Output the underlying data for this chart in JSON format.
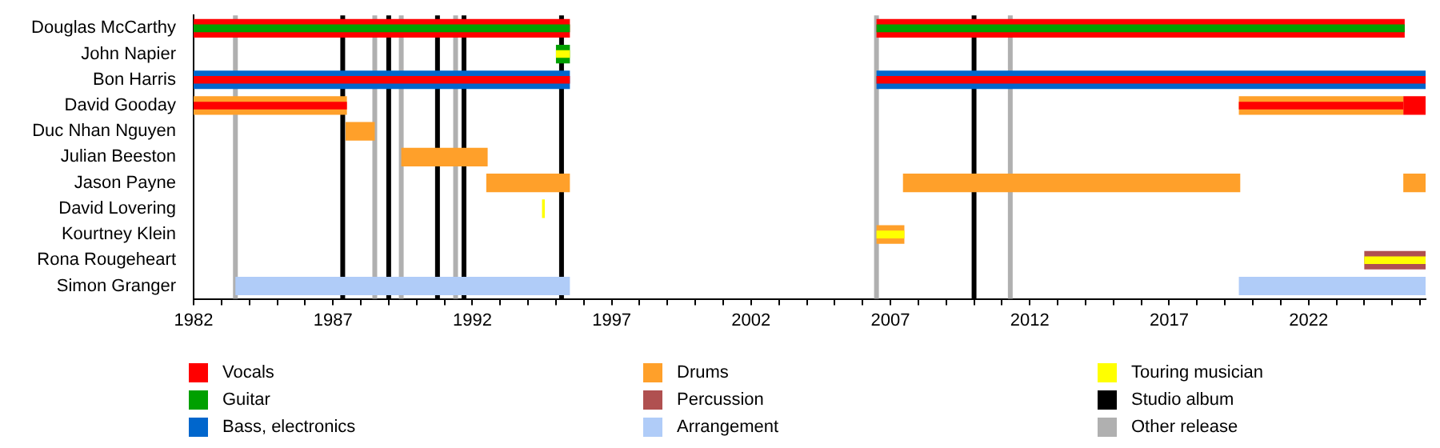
{
  "chart_data": {
    "type": "bar",
    "orientation": "horizontal",
    "legend": "bottom",
    "categories": [
      "Douglas McCarthy",
      "John Napier",
      "Bon Harris",
      "David Gooday",
      "Duc Nhan Nguyen",
      "Julian Beeston",
      "Jason Payne",
      "David Lovering",
      "Kourtney Klein",
      "Rona Rougeheart",
      "Simon Granger"
    ],
    "xlim": [
      1982,
      2026.2
    ],
    "xticks": [
      1982,
      {
        "value": 1983,
        "label": null
      },
      {
        "value": 1984,
        "label": null
      },
      {
        "value": 1985,
        "label": null
      },
      {
        "value": 1986,
        "label": null
      },
      1987,
      {
        "value": 1988,
        "label": null
      },
      {
        "value": 1989,
        "label": null
      },
      {
        "value": 1990,
        "label": null
      },
      {
        "value": 1991,
        "label": null
      },
      1992,
      {
        "value": 1993,
        "label": null
      },
      {
        "value": 1994,
        "label": null
      },
      {
        "value": 1995,
        "label": null
      },
      {
        "value": 1996,
        "label": null
      },
      1997,
      {
        "value": 1998,
        "label": null
      },
      {
        "value": 1999,
        "label": null
      },
      {
        "value": 2000,
        "label": null
      },
      {
        "value": 2001,
        "label": null
      },
      2002,
      {
        "value": 2003,
        "label": null
      },
      {
        "value": 2004,
        "label": null
      },
      {
        "value": 2005,
        "label": null
      },
      {
        "value": 2006,
        "label": null
      },
      2007,
      {
        "value": 2008,
        "label": null
      },
      {
        "value": 2009,
        "label": null
      },
      {
        "value": 2010,
        "label": null
      },
      {
        "value": 2011,
        "label": null
      },
      2012,
      {
        "value": 2013,
        "label": null
      },
      {
        "value": 2014,
        "label": null
      },
      {
        "value": 2015,
        "label": null
      },
      {
        "value": 2016,
        "label": null
      },
      2017,
      {
        "value": 2018,
        "label": null
      },
      {
        "value": 2019,
        "label": null
      },
      {
        "value": 2020,
        "label": null
      },
      {
        "value": 2021,
        "label": null
      },
      2022,
      {
        "value": 2023,
        "label": null
      },
      {
        "value": 2024,
        "label": null
      },
      {
        "value": 2025,
        "label": null
      },
      {
        "value": 2026,
        "label": null
      }
    ],
    "series": [
      {
        "name": "Vocals",
        "color": "#ff0000",
        "base": [
          1982,
          null,
          null,
          2025.4,
          null,
          null,
          null,
          null,
          null,
          null,
          null
        ],
        "values": [
          13.5,
          null,
          null,
          0.8,
          null,
          null,
          null,
          null,
          null,
          null,
          null
        ]
      },
      {
        "color": "#ff0000",
        "base": [
          2006.5,
          null,
          null,
          null,
          null,
          null,
          null,
          null,
          null,
          null,
          null
        ],
        "values": [
          18.95,
          null,
          null,
          null,
          null,
          null,
          null,
          null,
          null,
          null,
          null
        ]
      },
      {
        "name": "Guitar",
        "color": "#00a000",
        "base": [
          null,
          1995,
          null,
          null,
          null,
          null,
          null,
          null,
          null,
          null,
          null
        ],
        "values": [
          null,
          0.5,
          null,
          null,
          null,
          null,
          null,
          null,
          null,
          null,
          null
        ]
      },
      {
        "name": "Bass, electronics",
        "color": "#0066cc",
        "base": [
          null,
          null,
          1982,
          null,
          null,
          null,
          null,
          null,
          null,
          null,
          null
        ],
        "values": [
          null,
          null,
          13.5,
          null,
          null,
          null,
          null,
          null,
          null,
          null,
          null
        ]
      },
      {
        "color": "#0066cc",
        "base": [
          null,
          null,
          2006.5,
          null,
          null,
          null,
          null,
          null,
          null,
          null,
          null
        ],
        "values": [
          null,
          null,
          19.7,
          null,
          null,
          null,
          null,
          null,
          null,
          null,
          null
        ]
      },
      {
        "name": "Drums",
        "color": "#ffa02a",
        "base": [
          null,
          null,
          null,
          1982,
          1987.45,
          1989.45,
          1992.5,
          null,
          2006.5,
          null,
          null
        ],
        "values": [
          null,
          null,
          null,
          5.5,
          1.05,
          3.1,
          3.0,
          null,
          1.0,
          null,
          null
        ]
      },
      {
        "color": "#ffa02a",
        "base": [
          null,
          null,
          null,
          2019.5,
          null,
          null,
          2007.45,
          null,
          null,
          null,
          null
        ],
        "values": [
          null,
          null,
          null,
          5.9,
          null,
          null,
          12.1,
          null,
          null,
          null,
          null
        ]
      },
      {
        "color": "#ffa02a",
        "base": [
          null,
          null,
          null,
          null,
          null,
          null,
          2025.4,
          null,
          null,
          null,
          null
        ],
        "values": [
          null,
          null,
          null,
          null,
          null,
          null,
          0.8,
          null,
          null,
          null,
          null
        ]
      },
      {
        "name": "Percussion",
        "color": "#b05050",
        "base": [
          null,
          null,
          null,
          null,
          null,
          null,
          null,
          null,
          null,
          2024,
          null
        ],
        "values": [
          null,
          null,
          null,
          null,
          null,
          null,
          null,
          null,
          null,
          2.2,
          null
        ]
      },
      {
        "name": "Arrangement",
        "color": "#b0ccf8",
        "base": [
          null,
          null,
          null,
          null,
          null,
          null,
          null,
          null,
          null,
          null,
          1983.5
        ],
        "values": [
          null,
          null,
          null,
          null,
          null,
          null,
          null,
          null,
          null,
          null,
          12.0
        ]
      },
      {
        "color": "#b0ccf8",
        "base": [
          null,
          null,
          null,
          null,
          null,
          null,
          null,
          null,
          null,
          null,
          2019.5
        ],
        "values": [
          null,
          null,
          null,
          null,
          null,
          null,
          null,
          null,
          null,
          null,
          6.7
        ]
      },
      {
        "name": "Touring musician",
        "color": "#ffff00",
        "base": [
          null,
          null,
          null,
          null,
          null,
          null,
          null,
          1994.5,
          null,
          null,
          null
        ],
        "values": [
          null,
          null,
          null,
          null,
          null,
          null,
          null,
          0.1,
          null,
          null,
          null
        ]
      },
      {
        "color": "#00a000",
        "base": [
          1982,
          null,
          null,
          null,
          null,
          null,
          null,
          null,
          null,
          null,
          null
        ],
        "values": [
          13.5,
          null,
          null,
          null,
          null,
          null,
          null,
          null,
          null,
          null,
          null
        ]
      },
      {
        "color": "#00a000",
        "base": [
          2006.5,
          null,
          null,
          null,
          null,
          null,
          null,
          null,
          null,
          null,
          null
        ],
        "values": [
          18.95,
          null,
          null,
          null,
          null,
          null,
          null,
          null,
          null,
          null,
          null
        ]
      },
      {
        "color": "#ff0000",
        "base": [
          null,
          null,
          1982,
          1982,
          null,
          null,
          null,
          null,
          null,
          null,
          null
        ],
        "values": [
          null,
          null,
          13.5,
          5.5,
          null,
          null,
          null,
          null,
          null,
          null,
          null
        ]
      },
      {
        "color": "#ff0000",
        "base": [
          null,
          null,
          2006.5,
          2019.5,
          null,
          null,
          null,
          null,
          null,
          null,
          null
        ],
        "values": [
          null,
          null,
          19.7,
          5.9,
          null,
          null,
          null,
          null,
          null,
          null,
          null
        ]
      },
      {
        "color": "#ffff00",
        "base": [
          null,
          1995,
          null,
          null,
          null,
          null,
          null,
          null,
          2006.5,
          2024,
          null
        ],
        "values": [
          null,
          0.5,
          null,
          null,
          null,
          null,
          null,
          null,
          1.0,
          2.2,
          null
        ]
      }
    ],
    "ref_lines": [
      {
        "axis": "x",
        "value": 1987.35,
        "label": "Studio album",
        "color": "#000000"
      },
      {
        "axis": "x",
        "value": 1989.0,
        "color": "#000000"
      },
      {
        "axis": "x",
        "value": 1990.75,
        "color": "#000000"
      },
      {
        "axis": "x",
        "value": 1991.7,
        "color": "#000000"
      },
      {
        "axis": "x",
        "value": 1995.2,
        "color": "#000000"
      },
      {
        "axis": "x",
        "value": 2010.0,
        "color": "#000000"
      },
      {
        "axis": "x",
        "value": 1983.5,
        "label": "Other release",
        "color": "#b0b0b0"
      },
      {
        "axis": "x",
        "value": 1988.5,
        "color": "#b0b0b0"
      },
      {
        "axis": "x",
        "value": 1989.45,
        "color": "#b0b0b0"
      },
      {
        "axis": "x",
        "value": 1991.4,
        "color": "#b0b0b0"
      },
      {
        "axis": "x",
        "value": 2006.5,
        "color": "#b0b0b0"
      },
      {
        "axis": "x",
        "value": 2011.3,
        "color": "#b0b0b0"
      }
    ]
  }
}
